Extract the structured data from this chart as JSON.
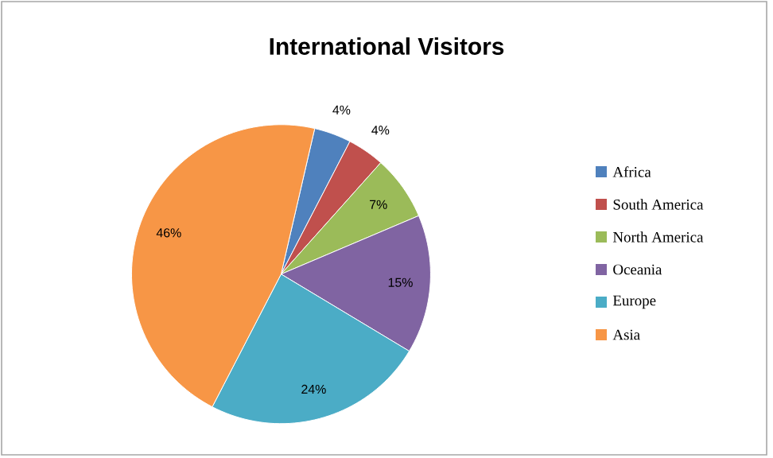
{
  "chart_data": {
    "type": "pie",
    "title": "International Visitors",
    "categories": [
      "Africa",
      "South America",
      "North America",
      "Oceania",
      "Europe",
      "Asia"
    ],
    "values": [
      4,
      4,
      7,
      15,
      24,
      46
    ],
    "colors": [
      "#4f81bd",
      "#c0504d",
      "#9bbb59",
      "#8064a2",
      "#4bacc6",
      "#f79646"
    ],
    "value_labels": [
      "4%",
      "4%",
      "7%",
      "15%",
      "24%",
      "46%"
    ],
    "legend": "right"
  }
}
